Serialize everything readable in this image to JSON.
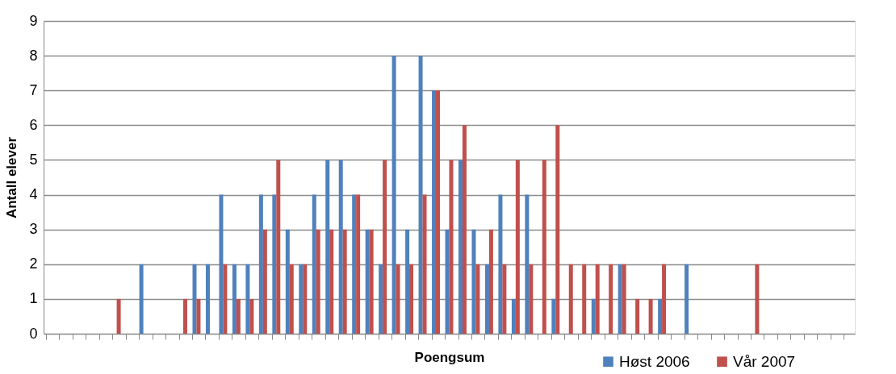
{
  "chart_data": {
    "type": "bar",
    "xlabel": "Poengsum",
    "ylabel": "Antall elever",
    "categories": [
      null,
      null,
      null,
      null,
      null,
      null,
      null,
      null,
      null,
      null,
      null,
      null,
      null,
      null,
      null,
      null,
      null,
      null,
      null,
      null,
      null,
      null,
      null,
      null,
      null,
      null,
      null,
      null,
      null,
      null,
      null,
      null,
      null,
      null,
      null,
      null,
      null,
      null,
      null,
      null,
      null,
      null,
      null,
      null,
      null,
      null,
      null,
      null,
      null,
      null,
      null,
      null,
      null,
      null,
      null,
      null,
      null,
      null,
      null,
      null,
      null
    ],
    "series": [
      {
        "name": "Høst 2006",
        "color": "#4f81bd",
        "values": [
          0,
          0,
          0,
          0,
          0,
          0,
          0,
          2,
          0,
          0,
          0,
          2,
          2,
          4,
          2,
          2,
          4,
          4,
          3,
          2,
          4,
          5,
          5,
          4,
          3,
          2,
          8,
          3,
          8,
          7,
          3,
          5,
          3,
          2,
          4,
          1,
          4,
          0,
          1,
          0,
          0,
          1,
          0,
          2,
          0,
          0,
          1,
          0,
          2,
          0,
          0,
          0,
          0,
          0,
          0,
          0,
          0,
          0,
          0,
          0,
          0
        ]
      },
      {
        "name": "Vår 2007",
        "color": "#c0504d",
        "values": [
          0,
          0,
          0,
          0,
          0,
          1,
          0,
          0,
          0,
          0,
          1,
          1,
          0,
          2,
          1,
          1,
          3,
          5,
          2,
          2,
          3,
          3,
          3,
          4,
          3,
          5,
          2,
          2,
          4,
          7,
          5,
          6,
          2,
          3,
          2,
          5,
          2,
          5,
          6,
          2,
          2,
          2,
          2,
          2,
          1,
          1,
          2,
          0,
          0,
          0,
          0,
          0,
          0,
          2,
          0,
          0,
          0,
          0,
          0,
          0,
          0
        ]
      }
    ],
    "ylim": [
      0,
      9
    ],
    "yticks": [
      0,
      1,
      2,
      3,
      4,
      5,
      6,
      7,
      8,
      9
    ],
    "grid": "y",
    "legend": "bottom right",
    "tick_labels": "y"
  }
}
